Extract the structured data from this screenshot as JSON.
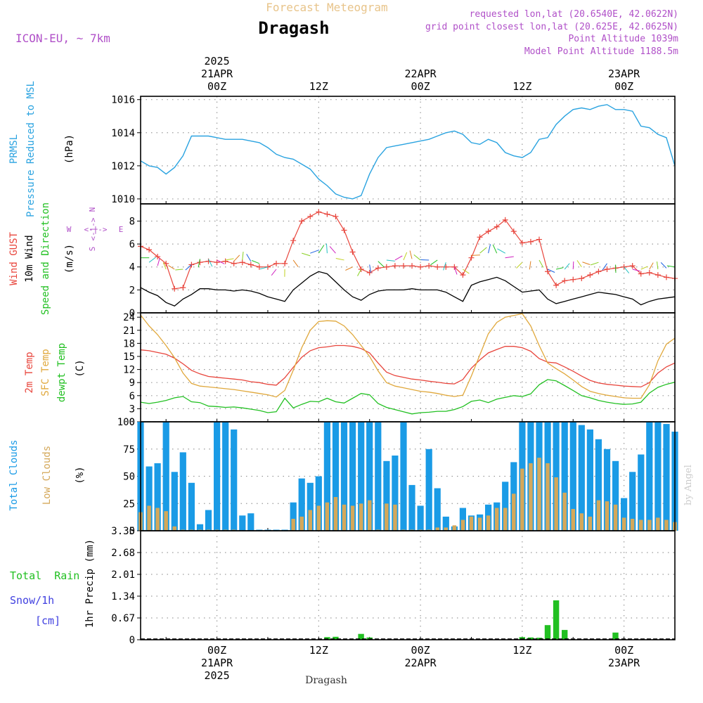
{
  "header": {
    "supertitle": "Forecast Meteogram",
    "location": "Dragash",
    "model": "ICON-EU, ~ 7km",
    "requested": "requested lon,lat (20.6540E, 42.0622N)",
    "grid_point": "grid point closest lon,lat (20.625E, 42.0625N)",
    "point_alt": "Point Altitude 1039m",
    "model_alt": "Model Point Altitude 1188.5m",
    "footer_location": "Dragash",
    "credit": "by Angel"
  },
  "time_axis": {
    "top": [
      {
        "t": 0,
        "lines": [
          "2025",
          "21APR",
          "00Z"
        ]
      },
      {
        "t": 12,
        "lines": [
          "12Z"
        ]
      },
      {
        "t": 24,
        "lines": [
          "22APR",
          "00Z"
        ]
      },
      {
        "t": 36,
        "lines": [
          "12Z"
        ]
      },
      {
        "t": 48,
        "lines": [
          "23APR",
          "00Z"
        ]
      },
      {
        "t": 60,
        "lines": [
          "12Z"
        ]
      }
    ],
    "bottom": [
      {
        "t": 0,
        "lines": [
          "00Z",
          "21APR",
          "2025"
        ]
      },
      {
        "t": 12,
        "lines": [
          "12Z"
        ]
      },
      {
        "t": 24,
        "lines": [
          "00Z",
          "22APR"
        ]
      },
      {
        "t": 36,
        "lines": [
          "12Z"
        ]
      },
      {
        "t": 48,
        "lines": [
          "00Z",
          "23APR"
        ]
      },
      {
        "t": 60,
        "lines": [
          "12Z"
        ]
      }
    ]
  },
  "panels": {
    "pressure": {
      "label_main": "PRMSL",
      "label_sub": "Pressure Reduced to MSL",
      "unit": "(hPa)",
      "color_main": "#2aa3e0"
    },
    "wind": {
      "label_gust": "Wind GUST",
      "label_wind": "10m Wind",
      "label_dir": "Speed and Direction",
      "unit": "(m/s)",
      "compass": {
        "n": "N",
        "s": "S",
        "e": "E",
        "w": "W"
      }
    },
    "temp": {
      "label_t2m": "2m Temp",
      "label_sfc": "SFC Temp",
      "label_dew": "dewpt Temp",
      "unit": "(C)"
    },
    "clouds": {
      "label_total": "Total Clouds",
      "label_low": "Low Clouds",
      "unit": "(%)"
    },
    "precip": {
      "label_rain": "Total  Rain",
      "label_snow": "Snow/1h",
      "label_cm": "[cm]",
      "label_axis": "1hr Precip (mm)"
    }
  },
  "colors": {
    "pressure": "#2aa3e0",
    "gust": "#e8453c",
    "wind": "#000000",
    "t2m": "#e8453c",
    "sfc": "#e0a83c",
    "dew": "#22c022",
    "total_clouds": "#1a9be6",
    "low_clouds": "#d4a85a",
    "rain": "#22c022",
    "snow": "#4040e0",
    "title_fade": "#e8c48a",
    "info": "#b050c8",
    "grid": "#9a9a9a"
  },
  "chart_data": [
    {
      "type": "line",
      "name": "pressure",
      "x_range": [
        -9,
        54
      ],
      "ylim": [
        1009.7,
        1016.2
      ],
      "yticks": [
        1010,
        1012,
        1014,
        1016
      ],
      "x": [
        -9,
        -8,
        -7,
        -6,
        -5,
        -4,
        -3,
        -2,
        -1,
        0,
        1,
        2,
        3,
        4,
        5,
        6,
        7,
        8,
        9,
        10,
        11,
        12,
        13,
        14,
        15,
        16,
        17,
        18,
        19,
        20,
        21,
        22,
        23,
        24,
        25,
        26,
        27,
        28,
        29,
        30,
        31,
        32,
        33,
        34,
        35,
        36,
        37,
        38,
        39,
        40,
        41,
        42,
        43,
        44,
        45,
        46,
        47,
        48,
        49,
        50,
        51,
        52,
        53,
        54
      ],
      "series": [
        {
          "values": [
            1012.3,
            1012,
            1011.9,
            1011.5,
            1011.9,
            1012.6,
            1013.8,
            1013.8,
            1013.8,
            1013.7,
            1013.6,
            1013.6,
            1013.6,
            1013.5,
            1013.4,
            1013.1,
            1012.7,
            1012.5,
            1012.4,
            1012.1,
            1011.8,
            1011.2,
            1010.8,
            1010.3,
            1010.1,
            1010,
            1010.2,
            1011.5,
            1012.5,
            1013.1,
            1013.2,
            1013.3,
            1013.4,
            1013.5,
            1013.6,
            1013.8,
            1014,
            1014.1,
            1013.9,
            1013.4,
            1013.3,
            1013.6,
            1013.4,
            1012.8,
            1012.6,
            1012.5,
            1012.8,
            1013.6,
            1013.7,
            1014.5,
            1015,
            1015.4,
            1015.5,
            1015.4,
            1015.6,
            1015.7,
            1015.4,
            1015.4,
            1015.3,
            1014.4,
            1014.3,
            1013.9,
            1013.7,
            1012
          ]
        }
      ]
    },
    {
      "type": "line",
      "name": "wind",
      "x_range": [
        -9,
        54
      ],
      "ylim": [
        0,
        9.5
      ],
      "yticks": [
        0,
        2,
        4,
        6,
        8
      ],
      "x": [
        -9,
        -8,
        -7,
        -6,
        -5,
        -4,
        -3,
        -2,
        -1,
        0,
        1,
        2,
        3,
        4,
        5,
        6,
        7,
        8,
        9,
        10,
        11,
        12,
        13,
        14,
        15,
        16,
        17,
        18,
        19,
        20,
        21,
        22,
        23,
        24,
        25,
        26,
        27,
        28,
        29,
        30,
        31,
        32,
        33,
        34,
        35,
        36,
        37,
        38,
        39,
        40,
        41,
        42,
        43,
        44,
        45,
        46,
        47,
        48,
        49,
        50,
        51,
        52,
        53,
        54
      ],
      "series": [
        {
          "name": "Wind GUST",
          "values": [
            5.8,
            5.5,
            4.9,
            4.3,
            2.1,
            2.2,
            4.2,
            4.4,
            4.5,
            4.4,
            4.5,
            4.3,
            4.4,
            4.2,
            4,
            4,
            4.3,
            4.3,
            6.3,
            8,
            8.4,
            8.8,
            8.6,
            8.4,
            7.2,
            5.3,
            3.8,
            3.5,
            3.9,
            4,
            4.1,
            4.1,
            4.1,
            4,
            4.1,
            4,
            4,
            4,
            3.3,
            4.8,
            6.6,
            7.1,
            7.5,
            8.1,
            7.1,
            6.1,
            6.2,
            6.4,
            3.6,
            2.4,
            2.8,
            2.9,
            3,
            3.3,
            3.6,
            3.8,
            3.9,
            4,
            4.1,
            3.4,
            3.5,
            3.3,
            3.1,
            3
          ]
        },
        {
          "name": "10m Wind",
          "values": [
            2.2,
            1.8,
            1.5,
            0.9,
            0.6,
            1.2,
            1.6,
            2.1,
            2.1,
            2,
            2,
            1.9,
            2,
            1.9,
            1.7,
            1.4,
            1.2,
            1,
            2,
            2.6,
            3.2,
            3.6,
            3.4,
            2.7,
            2,
            1.4,
            1.1,
            1.6,
            1.9,
            2,
            2,
            2,
            2.1,
            2,
            2,
            2,
            1.8,
            1.4,
            1,
            2.4,
            2.7,
            2.9,
            3.1,
            2.8,
            2.3,
            1.8,
            1.9,
            2,
            1.2,
            0.8,
            1,
            1.2,
            1.4,
            1.6,
            1.8,
            1.7,
            1.6,
            1.4,
            1.2,
            0.7,
            1,
            1.2,
            1.3,
            1.4
          ]
        }
      ]
    },
    {
      "type": "line",
      "name": "temperature",
      "x_range": [
        -9,
        54
      ],
      "ylim": [
        0,
        25
      ],
      "yticks": [
        0,
        3,
        6,
        9,
        12,
        15,
        18,
        21,
        24
      ],
      "x": [
        -9,
        -8,
        -7,
        -6,
        -5,
        -4,
        -3,
        -2,
        -1,
        0,
        1,
        2,
        3,
        4,
        5,
        6,
        7,
        8,
        9,
        10,
        11,
        12,
        13,
        14,
        15,
        16,
        17,
        18,
        19,
        20,
        21,
        22,
        23,
        24,
        25,
        26,
        27,
        28,
        29,
        30,
        31,
        32,
        33,
        34,
        35,
        36,
        37,
        38,
        39,
        40,
        41,
        42,
        43,
        44,
        45,
        46,
        47,
        48,
        49,
        50,
        51,
        52,
        53,
        54
      ],
      "series": [
        {
          "name": "2m Temp",
          "values": [
            16.5,
            16.3,
            15.9,
            15.5,
            14.6,
            13.3,
            11.8,
            11,
            10.4,
            10.2,
            10,
            9.8,
            9.6,
            9.2,
            9,
            8.6,
            8.4,
            10.1,
            12.5,
            14.8,
            16.3,
            17,
            17.2,
            17.5,
            17.5,
            17.3,
            16.8,
            15.8,
            13.5,
            11.4,
            10.6,
            10.2,
            9.8,
            9.6,
            9.3,
            9.1,
            8.8,
            8.7,
            9.7,
            12.3,
            14.2,
            15.8,
            16.6,
            17.3,
            17.3,
            17,
            16.2,
            14.5,
            13.7,
            13.5,
            12.6,
            11.6,
            10.5,
            9.5,
            8.9,
            8.6,
            8.4,
            8.2,
            8.1,
            8,
            9,
            11.2,
            12.6,
            13.5
          ]
        },
        {
          "name": "SFC Temp",
          "values": [
            24.5,
            22,
            20,
            17.5,
            14.7,
            11.2,
            8.8,
            8.2,
            8,
            7.8,
            7.6,
            7.4,
            7.1,
            6.8,
            6.5,
            6.2,
            5.7,
            7.2,
            11.8,
            17,
            21,
            23,
            23.2,
            23.1,
            22,
            20,
            17.5,
            15,
            11.7,
            9,
            8.2,
            7.8,
            7.4,
            7,
            6.8,
            6.5,
            6.1,
            5.8,
            6.1,
            10.5,
            15.3,
            20.2,
            22.8,
            24,
            24.4,
            24.8,
            22,
            17.5,
            13.5,
            12.2,
            11,
            9.6,
            8.1,
            7,
            6.5,
            6.1,
            5.8,
            5.5,
            5.4,
            5.4,
            8.5,
            14,
            17.8,
            19.2
          ]
        },
        {
          "name": "dewpt Temp",
          "values": [
            4.5,
            4.2,
            4.5,
            4.9,
            5.5,
            5.8,
            4.6,
            4.4,
            3.6,
            3.5,
            3.3,
            3.4,
            3.2,
            2.9,
            2.6,
            2.1,
            2.3,
            5.4,
            3.2,
            4,
            4.7,
            4.6,
            5.4,
            4.6,
            4.3,
            5.4,
            6.5,
            6.2,
            4.2,
            3.3,
            2.8,
            2.3,
            1.8,
            2.1,
            2.2,
            2.4,
            2.4,
            2.8,
            3.5,
            4.7,
            5,
            4.4,
            5.2,
            5.6,
            6,
            5.8,
            6.4,
            8.5,
            9.7,
            9.4,
            8.3,
            7.2,
            6,
            5.5,
            4.9,
            4.5,
            4.2,
            4,
            4.1,
            4.5,
            6.6,
            7.9,
            8.6,
            9.1
          ]
        }
      ]
    },
    {
      "type": "bar",
      "name": "clouds",
      "x_range": [
        -9,
        54
      ],
      "ylim": [
        0,
        100
      ],
      "yticks": [
        0,
        25,
        50,
        75,
        100
      ],
      "x": [
        -9,
        -8,
        -7,
        -6,
        -5,
        -4,
        -3,
        -2,
        -1,
        0,
        1,
        2,
        3,
        4,
        5,
        6,
        7,
        8,
        9,
        10,
        11,
        12,
        13,
        14,
        15,
        16,
        17,
        18,
        19,
        20,
        21,
        22,
        23,
        24,
        25,
        26,
        27,
        28,
        29,
        30,
        31,
        32,
        33,
        34,
        35,
        36,
        37,
        38,
        39,
        40,
        41,
        42,
        43,
        44,
        45,
        46,
        47,
        48,
        49,
        50,
        51,
        52,
        53,
        54
      ],
      "series": [
        {
          "name": "Total Clouds",
          "values": [
            100,
            59,
            62,
            100,
            54,
            72,
            44,
            6,
            19,
            100,
            100,
            93,
            14,
            16,
            1,
            1,
            1,
            1,
            26,
            48,
            44,
            50,
            100,
            100,
            100,
            100,
            100,
            100,
            100,
            64,
            69,
            100,
            42,
            23,
            75,
            39,
            13,
            4,
            21,
            14,
            15,
            24,
            26,
            45,
            63,
            100,
            100,
            100,
            100,
            100,
            100,
            100,
            97,
            93,
            84,
            75,
            64,
            30,
            54,
            70,
            100,
            100,
            98,
            91
          ]
        },
        {
          "name": "Low Clouds",
          "values": [
            17,
            23,
            21,
            18,
            4,
            1,
            1,
            1,
            1,
            1,
            1,
            1,
            0,
            0,
            0,
            0,
            0,
            0,
            11,
            13,
            19,
            23,
            26,
            31,
            24,
            23,
            25,
            28,
            1,
            25,
            24,
            1,
            1,
            1,
            1,
            3,
            3,
            5,
            10,
            13,
            12,
            14,
            21,
            21,
            34,
            57,
            62,
            67,
            62,
            49,
            35,
            20,
            16,
            13,
            28,
            27,
            24,
            12,
            11,
            10,
            10,
            12,
            10,
            8
          ]
        }
      ]
    },
    {
      "type": "bar",
      "name": "precipitation",
      "x_range": [
        -9,
        54
      ],
      "ylim": [
        0,
        3.35
      ],
      "yticks": [
        0,
        0.67,
        1.34,
        2.01,
        2.68,
        3.35
      ],
      "x": [
        -9,
        -8,
        -7,
        -6,
        -5,
        -4,
        -3,
        -2,
        -1,
        0,
        1,
        2,
        3,
        4,
        5,
        6,
        7,
        8,
        9,
        10,
        11,
        12,
        13,
        14,
        15,
        16,
        17,
        18,
        19,
        20,
        21,
        22,
        23,
        24,
        25,
        26,
        27,
        28,
        29,
        30,
        31,
        32,
        33,
        34,
        35,
        36,
        37,
        38,
        39,
        40,
        41,
        42,
        43,
        44,
        45,
        46,
        47,
        48,
        49,
        50,
        51,
        52,
        53,
        54
      ],
      "series": [
        {
          "name": "Total Rain",
          "values": [
            0,
            0,
            0,
            0,
            0,
            0,
            0,
            0,
            0,
            0,
            0,
            0,
            0,
            0,
            0,
            0,
            0,
            0,
            0,
            0,
            0,
            0,
            0.08,
            0.09,
            0,
            0,
            0.18,
            0.07,
            0,
            0,
            0,
            0,
            0,
            0,
            0,
            0,
            0,
            0,
            0,
            0,
            0,
            0,
            0,
            0,
            0,
            0.08,
            0.07,
            0.06,
            0.45,
            1.21,
            0.3,
            0,
            0,
            0,
            0,
            0,
            0.22,
            0,
            0,
            0,
            0,
            0,
            0,
            0
          ]
        }
      ]
    }
  ]
}
